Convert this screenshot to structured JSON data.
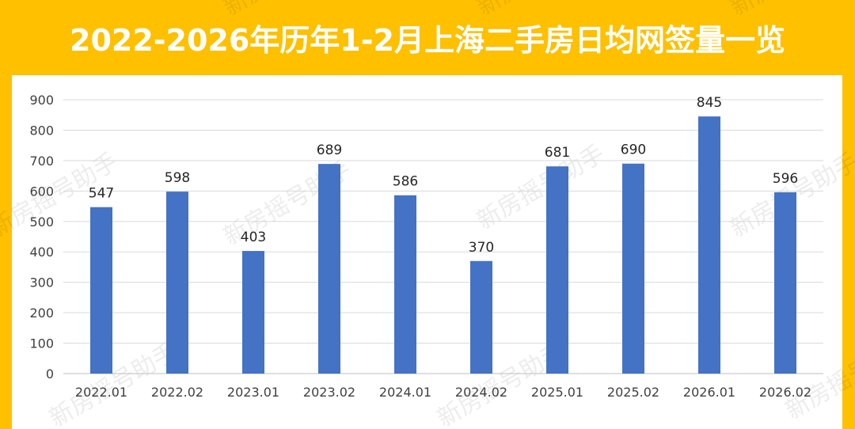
{
  "title": "2022-2026年历年1-2月上海二手房日均网签量一览",
  "watermark": "新房摇号助手",
  "colors": {
    "background": "#FFC000",
    "bar": "#4472C4",
    "grid": "#D9D9D9",
    "title_text": "#FFFFFF"
  },
  "chart_data": {
    "type": "bar",
    "categories": [
      "2022.01",
      "2022.02",
      "2023.01",
      "2023.02",
      "2024.01",
      "2024.02",
      "2025.01",
      "2025.02",
      "2026.01",
      "2026.02"
    ],
    "values": [
      547,
      598,
      403,
      689,
      586,
      370,
      681,
      690,
      845,
      596
    ],
    "data_labels": [
      "547",
      "598",
      "403",
      "689",
      "586",
      "370",
      "681",
      "690",
      "845",
      "596"
    ],
    "yticks": [
      "0",
      "100",
      "200",
      "300",
      "400",
      "500",
      "600",
      "700",
      "800",
      "900"
    ],
    "ylim": [
      0,
      900
    ],
    "grid": true,
    "legend": false
  }
}
